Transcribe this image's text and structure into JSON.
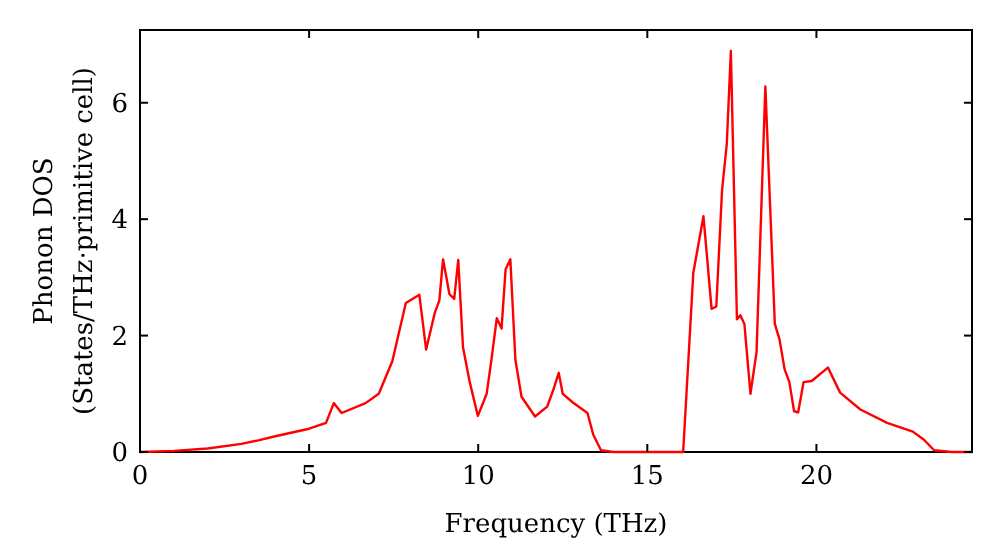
{
  "chart_data": {
    "type": "line",
    "xlabel": "Frequency (THz)",
    "ylabel": "Phonon DOS\n(States/THz·primitive cell)",
    "xlim": [
      0,
      24.6
    ],
    "ylim": [
      0,
      7.25
    ],
    "xticks": [
      0,
      5,
      10,
      15,
      20
    ],
    "yticks": [
      0,
      2,
      4,
      6
    ],
    "marker": "none",
    "line_style": "solid",
    "series": [
      {
        "color": "#ff0000",
        "x": [
          0,
          1,
          2,
          3,
          3.5,
          4,
          5,
          5.5,
          5.73,
          5.96,
          6.67,
          7.06,
          7.46,
          7.86,
          8.26,
          8.46,
          8.72,
          8.85,
          8.96,
          9.15,
          9.29,
          9.41,
          9.55,
          9.75,
          9.99,
          10.25,
          10.39,
          10.55,
          10.69,
          10.81,
          10.95,
          11.1,
          11.28,
          11.68,
          12.04,
          12.24,
          12.38,
          12.5,
          12.8,
          13.23,
          13.4,
          13.63,
          14,
          15,
          16.06,
          16.36,
          16.66,
          16.9,
          17.04,
          17.21,
          17.35,
          17.47,
          17.65,
          17.75,
          17.87,
          18.05,
          18.23,
          18.49,
          18.77,
          18.91,
          19.06,
          19.2,
          19.34,
          19.46,
          19.62,
          19.86,
          20.34,
          20.7,
          21.3,
          22.09,
          22.85,
          23.18,
          23.48,
          24,
          24.6
        ],
        "values": [
          0,
          0.02,
          0.06,
          0.14,
          0.2,
          0.27,
          0.4,
          0.5,
          0.84,
          0.67,
          0.84,
          1.0,
          1.56,
          2.56,
          2.7,
          1.76,
          2.4,
          2.6,
          3.31,
          2.71,
          2.63,
          3.3,
          1.8,
          1.2,
          0.62,
          1.0,
          1.58,
          2.3,
          2.12,
          3.14,
          3.31,
          1.58,
          0.95,
          0.61,
          0.78,
          1.1,
          1.36,
          1.0,
          0.85,
          0.67,
          0.3,
          0.03,
          0,
          0,
          0,
          3.08,
          4.05,
          2.46,
          2.5,
          4.5,
          5.3,
          6.89,
          2.28,
          2.35,
          2.2,
          1.0,
          1.72,
          6.28,
          2.2,
          1.93,
          1.42,
          1.2,
          0.7,
          0.68,
          1.2,
          1.22,
          1.45,
          1.02,
          0.73,
          0.5,
          0.35,
          0.21,
          0.03,
          0,
          0
        ]
      }
    ]
  }
}
